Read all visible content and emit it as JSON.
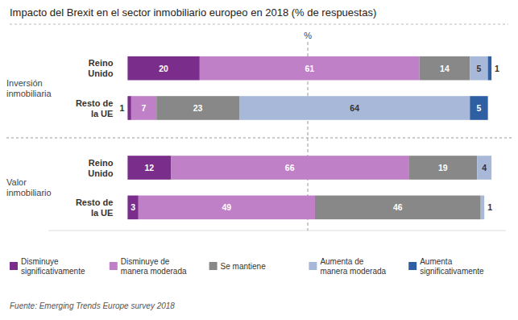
{
  "chart_data": {
    "type": "bar",
    "orientation": "horizontal",
    "stacked": true,
    "title": "Impacto del Brexit en el sector inmobiliario europeo en 2018 (% de respuestas)",
    "source": "Fuente: Emerging Trends Europe survey 2018",
    "categories": [
      "Reino\nUnido",
      "Resto de\nla UE",
      "Reino\nUnido",
      "Resto de\nla UE"
    ],
    "groups": [
      "Inversión\ninmobiliaria",
      "Valor\ninmobiliario"
    ],
    "series": [
      {
        "name": "Disminuye\nsignificativamente",
        "color": "#7B2D8B",
        "values": [
          20,
          1,
          12,
          3
        ]
      },
      {
        "name": "Disminuye de\nmanera moderada",
        "color": "#C080C8",
        "values": [
          61,
          7,
          66,
          49
        ]
      },
      {
        "name": "Se mantiene",
        "color": "#888888",
        "values": [
          14,
          23,
          19,
          46
        ]
      },
      {
        "name": "Aumenta de\nmanera moderada",
        "color": "#A8B8D8",
        "values": [
          5,
          64,
          4,
          1
        ]
      },
      {
        "name": "Aumenta\nsignificativamente",
        "color": "#2E5FA3",
        "values": [
          1,
          5,
          0,
          0
        ]
      }
    ],
    "xlim": [
      -22,
      105
    ],
    "annotations": [
      {
        "x": 50,
        "text": "%"
      }
    ],
    "data_labels": true,
    "tick_labels": false,
    "legend": "bottom",
    "grid": false
  }
}
